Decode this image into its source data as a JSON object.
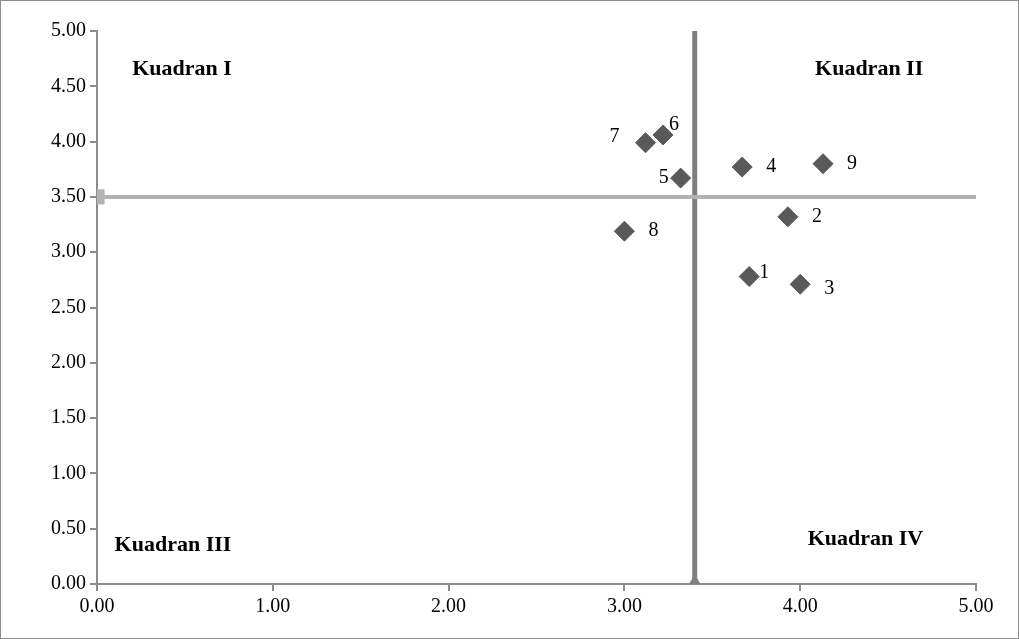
{
  "chart_data": {
    "type": "scatter",
    "grid": false,
    "legend": false,
    "series": [
      {
        "x": [
          3.71,
          3.93,
          4.0,
          3.67,
          3.32,
          3.22,
          3.12,
          3.0,
          4.13
        ],
        "values": [
          2.78,
          3.32,
          2.71,
          3.77,
          3.67,
          4.06,
          3.99,
          3.19,
          3.8
        ],
        "color": "#595959",
        "marker": "diamond"
      },
      {
        "x": [
          3.4
        ],
        "values": [
          0
        ],
        "color": "#7f7f7f",
        "marker": "triangle"
      },
      {
        "x": [
          0
        ],
        "values": [
          3.5
        ],
        "color": "#b3b3b3",
        "marker": "square"
      }
    ],
    "xlim": [
      0,
      5
    ],
    "xticks": [
      {
        "value": 0,
        "label": "0.00"
      },
      {
        "value": 1,
        "label": "1.00"
      },
      {
        "value": 2,
        "label": "2.00"
      },
      {
        "value": 3,
        "label": "3.00"
      },
      {
        "value": 4,
        "label": "4.00"
      },
      {
        "value": 5,
        "label": "5.00"
      }
    ],
    "ylim": [
      0,
      5
    ],
    "yticks": [
      {
        "value": 0,
        "label": "0.00"
      },
      {
        "value": 0.5,
        "label": "0.50"
      },
      {
        "value": 1,
        "label": "1.00"
      },
      {
        "value": 1.5,
        "label": "1.50"
      },
      {
        "value": 2,
        "label": "2.00"
      },
      {
        "value": 2.5,
        "label": "2.50"
      },
      {
        "value": 3,
        "label": "3.00"
      },
      {
        "value": 3.5,
        "label": "3.50"
      },
      {
        "value": 4,
        "label": "4.00"
      },
      {
        "value": 4.5,
        "label": "4.50"
      },
      {
        "value": 5,
        "label": "5.00"
      }
    ],
    "ref_lines": [
      {
        "axis": "x",
        "value": 3.4,
        "color": "#7f7f7f"
      },
      {
        "axis": "y",
        "value": 3.5,
        "color": "#b3b3b3"
      }
    ],
    "annotations": [
      "Kuadran I",
      "Kuadran II",
      "Kuadran III",
      "Kuadran IV",
      {
        "text": "1",
        "x": 3.71,
        "y": 2.78
      },
      {
        "text": "2",
        "x": 3.93,
        "y": 3.32
      },
      {
        "text": "3",
        "x": 4.0,
        "y": 2.71
      },
      {
        "text": "4",
        "x": 3.67,
        "y": 3.77
      },
      {
        "text": "5",
        "x": 3.32,
        "y": 3.67
      },
      {
        "text": "6",
        "x": 3.22,
        "y": 4.06
      },
      {
        "text": "7",
        "x": 3.12,
        "y": 3.99
      },
      {
        "text": "8",
        "x": 3.0,
        "y": 3.19
      },
      {
        "text": "9",
        "x": 4.13,
        "y": 3.8
      }
    ]
  }
}
